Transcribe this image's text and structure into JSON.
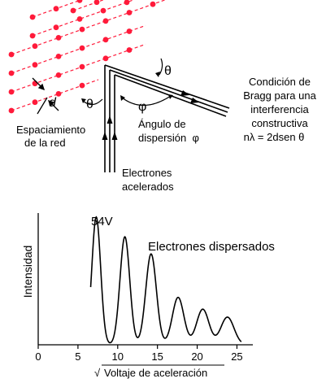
{
  "diagram": {
    "label_d": "d",
    "label_theta_top": "θ",
    "label_theta_left": "θ",
    "label_phi": "φ",
    "bragg_lines": [
      "Condición de",
      "Bragg para una",
      "interferencia",
      "constructiva",
      "nλ = 2dsen θ"
    ],
    "spacing_lines": [
      "Espaciamiento",
      "de la red"
    ],
    "angle_lines": [
      "Ángulo de",
      "dispersión  φ"
    ],
    "electrons_lines": [
      "Electrones",
      "acelerados"
    ],
    "colors": {
      "atom": "#ff1a3a",
      "beam": "#000000"
    }
  },
  "chart_data": {
    "type": "line",
    "title": "",
    "annotation_peak": "54V",
    "series_label": "Electrones dispersados",
    "ylabel": "Intensidad",
    "xlabel": "Voltaje de aceleración",
    "xlabel_prefix": "√",
    "x_ticks": [
      "0",
      "5",
      "10",
      "15",
      "20",
      "25"
    ],
    "xlim": [
      0,
      27
    ],
    "ylim": [
      0,
      1
    ],
    "grid": false,
    "peaks": [
      {
        "x": 7.3,
        "y": 0.97
      },
      {
        "x": 10.9,
        "y": 0.82
      },
      {
        "x": 14.2,
        "y": 0.69
      },
      {
        "x": 17.6,
        "y": 0.36
      },
      {
        "x": 20.7,
        "y": 0.27
      },
      {
        "x": 23.8,
        "y": 0.21
      }
    ]
  }
}
